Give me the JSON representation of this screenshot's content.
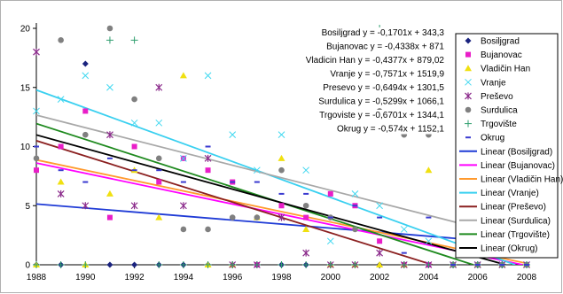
{
  "chart_data": {
    "type": "scatter",
    "title": "",
    "xlabel": "",
    "ylabel": "",
    "xlim": [
      1988,
      2008
    ],
    "ylim": [
      0,
      20
    ],
    "x_ticks": [
      "1988",
      "1990",
      "1992",
      "1994",
      "1996",
      "1998",
      "2000",
      "2002",
      "2004",
      "2006",
      "2008"
    ],
    "y_ticks": [
      "0",
      "5",
      "10",
      "15",
      "20"
    ],
    "grid": false,
    "legend_position": "right",
    "series": [
      {
        "name": "Bosiljgrad",
        "marker": "diamond",
        "color": "#1a237e",
        "trend_color": "#1f3bd6",
        "points": [
          [
            1988,
            0
          ],
          [
            1989,
            0
          ],
          [
            1990,
            17
          ],
          [
            1991,
            0
          ],
          [
            1992,
            0
          ],
          [
            1993,
            0
          ],
          [
            1994,
            0
          ],
          [
            1995,
            0
          ],
          [
            1996,
            0
          ],
          [
            1997,
            0
          ],
          [
            1998,
            0
          ],
          [
            1999,
            0
          ],
          [
            2000,
            0
          ],
          [
            2001,
            0
          ],
          [
            2002,
            0
          ],
          [
            2003,
            0
          ],
          [
            2004,
            0
          ],
          [
            2005,
            0
          ],
          [
            2006,
            0
          ],
          [
            2007,
            0
          ],
          [
            2008,
            0
          ]
        ],
        "slope": -0.1701,
        "intercept": 343.3
      },
      {
        "name": "Bujanovac",
        "marker": "square",
        "color": "#e91ec8",
        "trend_color": "#ff00ff",
        "points": [
          [
            1988,
            8
          ],
          [
            1989,
            10
          ],
          [
            1990,
            13
          ],
          [
            1991,
            4
          ],
          [
            1992,
            10
          ],
          [
            1993,
            7
          ],
          [
            1994,
            9
          ],
          [
            1995,
            8
          ],
          [
            1996,
            7
          ],
          [
            1997,
            0
          ],
          [
            1998,
            5
          ],
          [
            1999,
            4
          ],
          [
            2000,
            6
          ],
          [
            2001,
            5
          ],
          [
            2002,
            2
          ],
          [
            2003,
            0
          ],
          [
            2004,
            0
          ],
          [
            2005,
            0
          ],
          [
            2006,
            0
          ],
          [
            2007,
            0
          ],
          [
            2008,
            0
          ]
        ],
        "slope": -0.4338,
        "intercept": 871
      },
      {
        "name": "Vladičin Han",
        "marker": "triangle",
        "color": "#f0e010",
        "trend_color": "#ff9a2e",
        "points": [
          [
            1988,
            0
          ],
          [
            1989,
            7
          ],
          [
            1990,
            0
          ],
          [
            1991,
            6
          ],
          [
            1992,
            8
          ],
          [
            1993,
            4
          ],
          [
            1994,
            16
          ],
          [
            1995,
            0
          ],
          [
            1996,
            0
          ],
          [
            1997,
            4
          ],
          [
            1998,
            9
          ],
          [
            1999,
            3
          ],
          [
            2000,
            0
          ],
          [
            2001,
            0
          ],
          [
            2002,
            0
          ],
          [
            2003,
            0
          ],
          [
            2004,
            8
          ],
          [
            2005,
            0
          ],
          [
            2006,
            0
          ],
          [
            2007,
            0
          ],
          [
            2008,
            0
          ]
        ],
        "slope": -0.4377,
        "intercept": 879.02
      },
      {
        "name": "Vranje",
        "marker": "x",
        "color": "#40d8f0",
        "trend_color": "#3ad0f0",
        "points": [
          [
            1988,
            13
          ],
          [
            1989,
            14
          ],
          [
            1990,
            16
          ],
          [
            1991,
            15
          ],
          [
            1992,
            12
          ],
          [
            1993,
            12
          ],
          [
            1994,
            9
          ],
          [
            1995,
            16
          ],
          [
            1996,
            11
          ],
          [
            1997,
            8
          ],
          [
            1998,
            11
          ],
          [
            1999,
            8
          ],
          [
            2000,
            2
          ],
          [
            2001,
            6
          ],
          [
            2002,
            5
          ],
          [
            2003,
            3
          ],
          [
            2004,
            2
          ],
          [
            2005,
            0
          ],
          [
            2006,
            0
          ],
          [
            2007,
            0
          ],
          [
            2008,
            0
          ]
        ],
        "slope": -0.7571,
        "intercept": 1519.9
      },
      {
        "name": "Preševo",
        "marker": "star",
        "color": "#8b2a8b",
        "trend_color": "#8b2020",
        "points": [
          [
            1988,
            18
          ],
          [
            1989,
            6
          ],
          [
            1990,
            5
          ],
          [
            1991,
            11
          ],
          [
            1992,
            5
          ],
          [
            1993,
            15
          ],
          [
            1994,
            5
          ],
          [
            1995,
            9
          ],
          [
            1996,
            0
          ],
          [
            1997,
            0
          ],
          [
            1998,
            4
          ],
          [
            1999,
            1
          ],
          [
            2000,
            0
          ],
          [
            2001,
            0
          ],
          [
            2002,
            1
          ],
          [
            2003,
            0
          ],
          [
            2004,
            0
          ],
          [
            2005,
            0
          ],
          [
            2006,
            0
          ],
          [
            2007,
            0
          ],
          [
            2008,
            0
          ]
        ],
        "slope": -0.6494,
        "intercept": 1301.5
      },
      {
        "name": "Surdulica",
        "marker": "circle",
        "color": "#808080",
        "trend_color": "#a8a8a8",
        "points": [
          [
            1988,
            9
          ],
          [
            1989,
            19
          ],
          [
            1990,
            11
          ],
          [
            1991,
            20
          ],
          [
            1992,
            14
          ],
          [
            1993,
            9
          ],
          [
            1994,
            3
          ],
          [
            1995,
            3
          ],
          [
            1996,
            4
          ],
          [
            1997,
            4
          ],
          [
            1998,
            8
          ],
          [
            1999,
            5
          ],
          [
            2000,
            4
          ],
          [
            2001,
            3
          ],
          [
            2002,
            13
          ],
          [
            2003,
            11
          ],
          [
            2004,
            11
          ],
          [
            2005,
            0
          ],
          [
            2006,
            0
          ],
          [
            2007,
            0
          ],
          [
            2008,
            0
          ]
        ],
        "slope": -0.5299,
        "intercept": 1066.1
      },
      {
        "name": "Trgovište",
        "marker": "plus",
        "color": "#2e9e6e",
        "trend_color": "#1f8a1f",
        "points": [
          [
            1988,
            0
          ],
          [
            1989,
            0
          ],
          [
            1990,
            0
          ],
          [
            1991,
            19
          ],
          [
            1992,
            19
          ],
          [
            1993,
            0
          ],
          [
            1994,
            0
          ],
          [
            1995,
            0
          ],
          [
            1996,
            0
          ],
          [
            1997,
            0
          ],
          [
            1998,
            0
          ],
          [
            1999,
            0
          ],
          [
            2000,
            0
          ],
          [
            2001,
            0
          ],
          [
            2002,
            20
          ],
          [
            2003,
            0
          ],
          [
            2004,
            0
          ],
          [
            2005,
            0
          ],
          [
            2006,
            0
          ],
          [
            2007,
            0
          ],
          [
            2008,
            0
          ]
        ],
        "slope": -0.6701,
        "intercept": 1344.1
      },
      {
        "name": "Okrug",
        "marker": "dash",
        "color": "#3a3ad0",
        "trend_color": "#000000",
        "points": [
          [
            1988,
            10
          ],
          [
            1989,
            8
          ],
          [
            1990,
            7
          ],
          [
            1991,
            9
          ],
          [
            1992,
            8
          ],
          [
            1993,
            8
          ],
          [
            1994,
            7
          ],
          [
            1995,
            10
          ],
          [
            1996,
            7
          ],
          [
            1997,
            7
          ],
          [
            1998,
            6
          ],
          [
            1999,
            6
          ],
          [
            2000,
            4
          ],
          [
            2001,
            5
          ],
          [
            2002,
            4
          ],
          [
            2003,
            1
          ],
          [
            2004,
            4
          ],
          [
            2005,
            0
          ],
          [
            2006,
            0
          ],
          [
            2007,
            0
          ],
          [
            2008,
            0
          ]
        ],
        "slope": -0.574,
        "intercept": 1152.1
      }
    ],
    "equations": [
      "Bosiljgrad y = -0,1701x + 343,3",
      "Bujanovac y = -0,4338x + 871",
      "Vladicin Han y = -0,4377x + 879,02",
      "Vranje y = -0,7571x + 1519,9",
      "Presevo y = -0,6494x + 1301,5",
      "Surdulica y = -0,5299x + 1066,1",
      "Trgoviste y = -0,6701x + 1344,1",
      "Okrug y = -0,574x + 1152,1"
    ],
    "legend_entries": [
      "Bosiljgrad",
      "Bujanovac",
      "Vladičin Han",
      "Vranje",
      "Preševo",
      "Surdulica",
      "Trgovište",
      "Okrug",
      "Linear (Bosiljgrad)",
      "Linear (Bujanovac)",
      "Linear (Vladičin Han)",
      "Linear (Vranje)",
      "Linear (Preševo)",
      "Linear (Surdulica)",
      "Linear (Trgovište)",
      "Linear (Okrug)"
    ]
  }
}
